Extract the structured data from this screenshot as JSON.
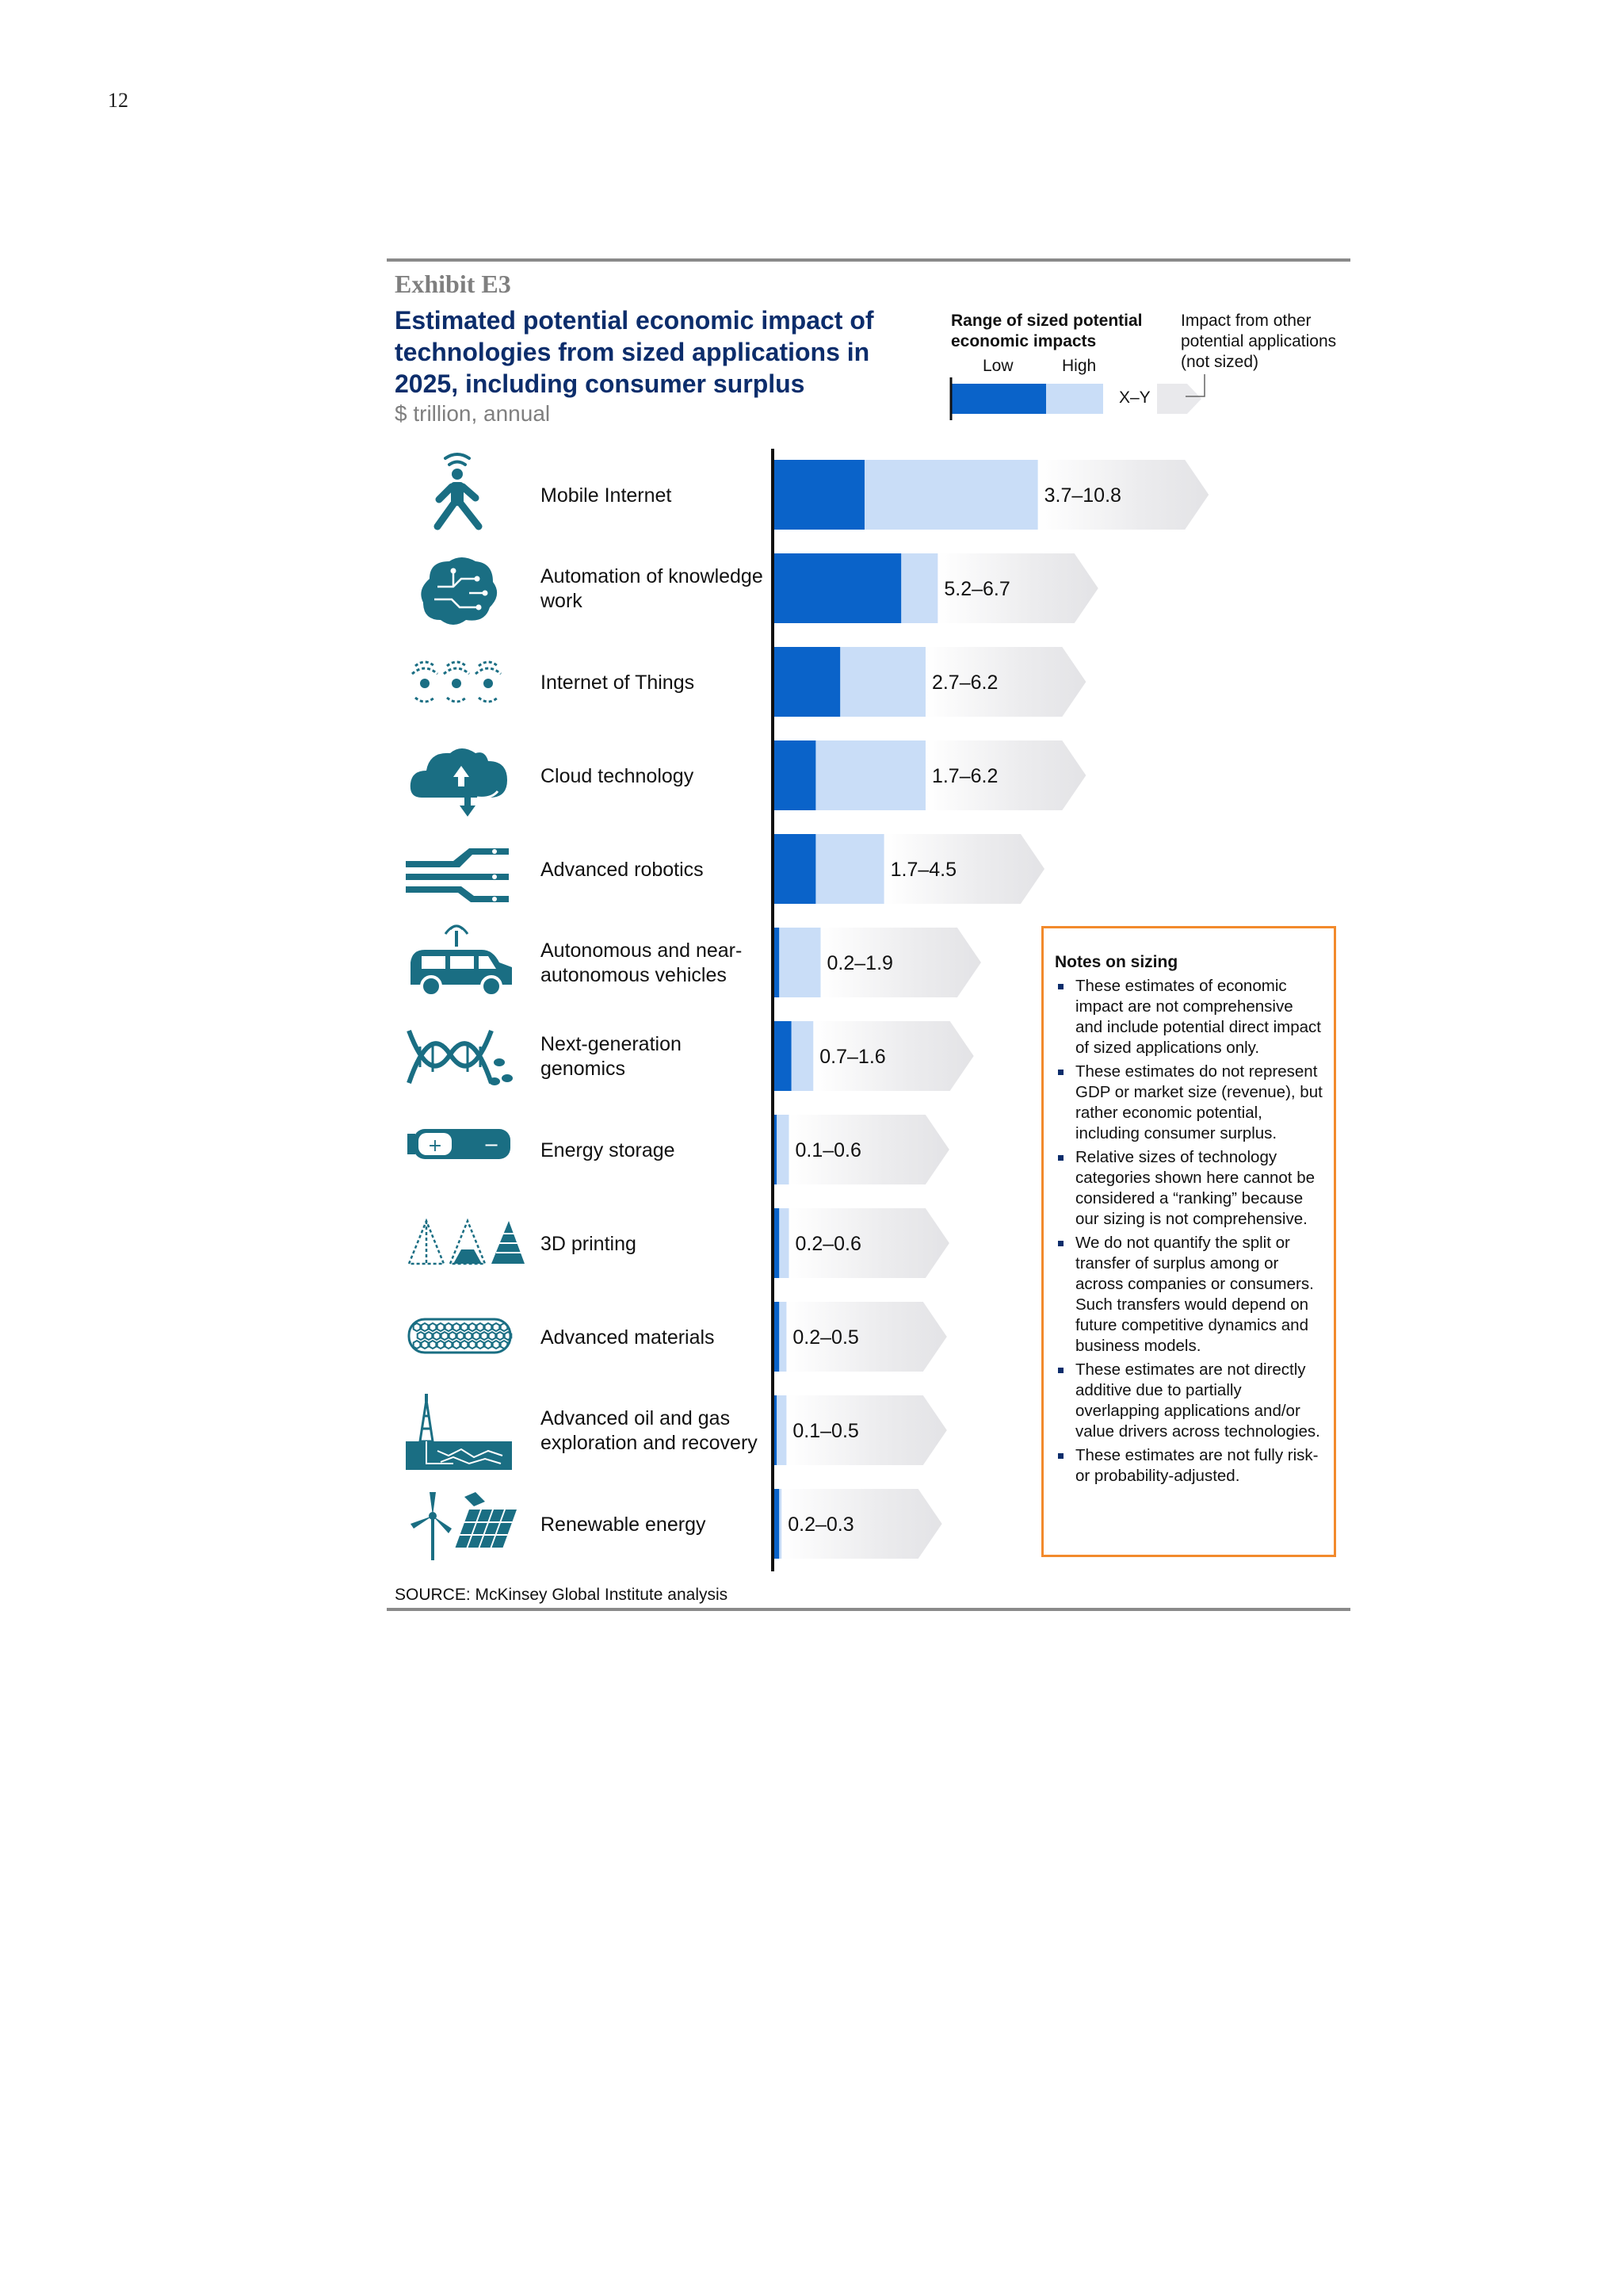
{
  "page_number": "12",
  "exhibit_label": "Exhibit E3",
  "title": "Estimated potential economic impact of technologies from sized applications in 2025, including consumer surplus",
  "subtitle": "$ trillion, annual",
  "legend": {
    "range_title": "Range of sized potential economic impacts",
    "low": "Low",
    "high": "High",
    "xy": "X–Y",
    "other": "Impact from other potential applications (not sized)"
  },
  "colors": {
    "low": "#0a63c9",
    "high": "#c9ddf7",
    "arrow": "#e9e9ec",
    "icon": "#1a6e83",
    "title": "#0c2d6b",
    "notes_border": "#f28a2c"
  },
  "chart_data": {
    "type": "bar",
    "orientation": "horizontal",
    "title": "Estimated potential economic impact of technologies from sized applications in 2025, including consumer surplus",
    "unit": "$ trillion, annual",
    "categories": [
      "Mobile Internet",
      "Automation of knowledge work",
      "Internet of Things",
      "Cloud technology",
      "Advanced robotics",
      "Autonomous and near-autonomous vehicles",
      "Next-generation genomics",
      "Energy storage",
      "3D printing",
      "Advanced materials",
      "Advanced oil and gas exploration and recovery",
      "Renewable energy"
    ],
    "series": [
      {
        "name": "Low",
        "values": [
          3.7,
          5.2,
          2.7,
          1.7,
          1.7,
          0.2,
          0.7,
          0.1,
          0.2,
          0.2,
          0.1,
          0.2
        ]
      },
      {
        "name": "High",
        "values": [
          10.8,
          6.7,
          6.2,
          6.2,
          4.5,
          1.9,
          1.6,
          0.6,
          0.6,
          0.5,
          0.5,
          0.3
        ]
      }
    ],
    "data_labels": [
      "3.7–10.8",
      "5.2–6.7",
      "2.7–6.2",
      "1.7–6.2",
      "1.7–4.5",
      "0.2–1.9",
      "0.7–1.6",
      "0.1–0.6",
      "0.2–0.6",
      "0.2–0.5",
      "0.1–0.5",
      "0.2–0.3"
    ],
    "xlim": [
      0,
      11
    ],
    "grid": false,
    "legend_position": "top-right"
  },
  "rows": [
    {
      "label": "Mobile Internet",
      "icon": "mobile-internet-icon"
    },
    {
      "label": "Automation of knowledge work",
      "icon": "brain-circuit-icon"
    },
    {
      "label": "Internet of Things",
      "icon": "connected-devices-icon"
    },
    {
      "label": "Cloud technology",
      "icon": "cloud-icon"
    },
    {
      "label": "Advanced robotics",
      "icon": "robot-hand-icon"
    },
    {
      "label": "Autonomous and near-autonomous vehicles",
      "icon": "connected-car-icon"
    },
    {
      "label": "Next-generation genomics",
      "icon": "dna-icon"
    },
    {
      "label": "Energy storage",
      "icon": "battery-icon"
    },
    {
      "label": "3D printing",
      "icon": "pyramid-icon"
    },
    {
      "label": "Advanced materials",
      "icon": "nanotube-icon"
    },
    {
      "label": "Advanced oil and gas exploration and recovery",
      "icon": "oil-rig-icon"
    },
    {
      "label": "Renewable energy",
      "icon": "wind-solar-icon"
    }
  ],
  "notes": {
    "title": "Notes on sizing",
    "items": [
      "These estimates of economic impact are not comprehensive and include potential direct impact of sized applications only.",
      "These estimates do not represent GDP or market size (revenue), but rather economic potential, including consumer surplus.",
      "Relative sizes of technology categories shown here cannot be considered a “ranking” because our sizing is not comprehensive.",
      "We do not quantify the split or transfer of surplus among or across companies or consumers. Such transfers would depend on future competitive dynamics and business models.",
      "These estimates are not directly additive due to partially overlapping applications and/or value drivers across technologies.",
      "These estimates are not fully risk- or probability-adjusted."
    ]
  },
  "source": "SOURCE: McKinsey Global Institute analysis"
}
